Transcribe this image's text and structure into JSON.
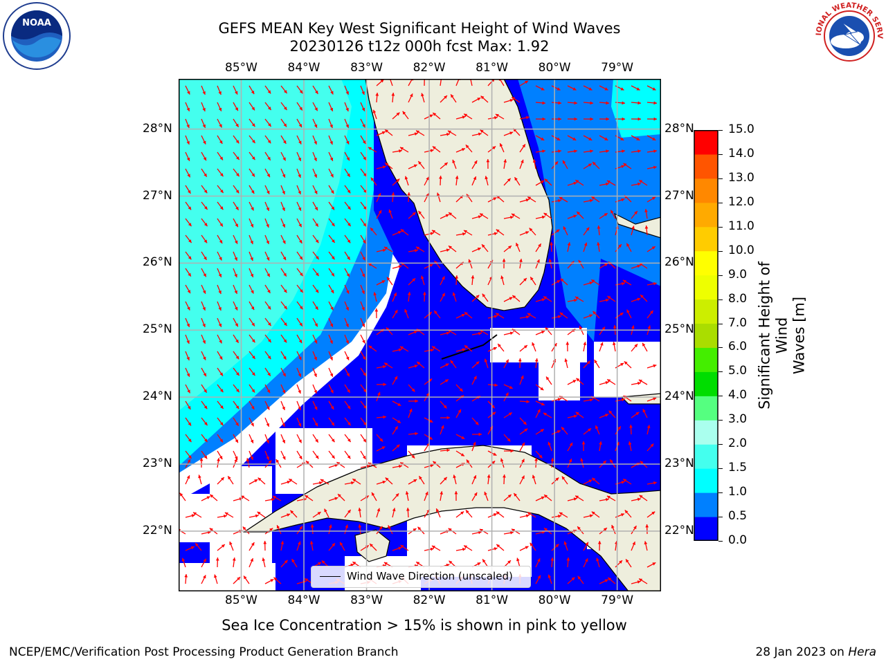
{
  "title": {
    "line1": "GEFS MEAN Key West Significant Height of Wind Waves",
    "line2": "20230126 t12z 000h fcst   Max: 1.92"
  },
  "logos": {
    "left": {
      "text": "NOAA",
      "ring_text": "NATIONAL OCEANIC AND ATMOSPHERIC ADMINISTRATION · U.S. DEPARTMENT OF COMMERCE",
      "icon": "noaa-logo"
    },
    "right": {
      "text": "NATIONAL WEATHER SERVICE",
      "icon": "nws-logo"
    }
  },
  "map": {
    "lon_labels": [
      "85°W",
      "84°W",
      "83°W",
      "82°W",
      "81°W",
      "80°W",
      "79°W"
    ],
    "lat_labels": [
      "28°N",
      "27°N",
      "26°N",
      "25°N",
      "24°N",
      "23°N",
      "22°N"
    ],
    "lon_range": [
      -86.0,
      -78.3
    ],
    "lat_range": [
      21.1,
      28.75
    ],
    "grid": true,
    "land_color": "#eeeedd",
    "arrow_color": "#ff0000"
  },
  "legend": {
    "label": "Wind Wave Direction (unscaled)",
    "location": "lower center"
  },
  "colorbar": {
    "label": "Significant Height of Wind Waves [m]",
    "label_lines": [
      "Significant Height of Wind",
      "Waves [m]"
    ],
    "ticks": [
      "15.0",
      "14.0",
      "13.0",
      "12.0",
      "11.0",
      "10.0",
      "9.0",
      "8.0",
      "7.0",
      "6.0",
      "5.0",
      "4.0",
      "3.0",
      "2.0",
      "1.5",
      "1.0",
      "0.5",
      "0.0"
    ],
    "bands": [
      {
        "from": "0.0",
        "to": "0.5",
        "color": "#0000ff"
      },
      {
        "from": "0.5",
        "to": "1.0",
        "color": "#0080ff"
      },
      {
        "from": "1.0",
        "to": "1.5",
        "color": "#00ffff"
      },
      {
        "from": "1.5",
        "to": "2.0",
        "color": "#44ffee"
      },
      {
        "from": "2.0",
        "to": "3.0",
        "color": "#aaffee"
      },
      {
        "from": "3.0",
        "to": "4.0",
        "color": "#55ff80"
      },
      {
        "from": "4.0",
        "to": "5.0",
        "color": "#00dd00"
      },
      {
        "from": "5.0",
        "to": "6.0",
        "color": "#44ee00"
      },
      {
        "from": "6.0",
        "to": "7.0",
        "color": "#aadd00"
      },
      {
        "from": "7.0",
        "to": "8.0",
        "color": "#ccee00"
      },
      {
        "from": "8.0",
        "to": "9.0",
        "color": "#eeff00"
      },
      {
        "from": "9.0",
        "to": "10.0",
        "color": "#ffff00"
      },
      {
        "from": "10.0",
        "to": "11.0",
        "color": "#ffcc00"
      },
      {
        "from": "11.0",
        "to": "12.0",
        "color": "#ffaa00"
      },
      {
        "from": "12.0",
        "to": "13.0",
        "color": "#ff8800"
      },
      {
        "from": "13.0",
        "to": "14.0",
        "color": "#ff5500"
      },
      {
        "from": "14.0",
        "to": "15.0",
        "color": "#ff0000"
      }
    ]
  },
  "footer": {
    "note": "Sea Ice Concentration > 15% is shown in pink to yellow",
    "credit_left": "NCEP/EMC/Verification Post Processing Product Generation Branch",
    "credit_right_prefix": "28 Jan 2023 on ",
    "credit_right_host": "Hera"
  }
}
